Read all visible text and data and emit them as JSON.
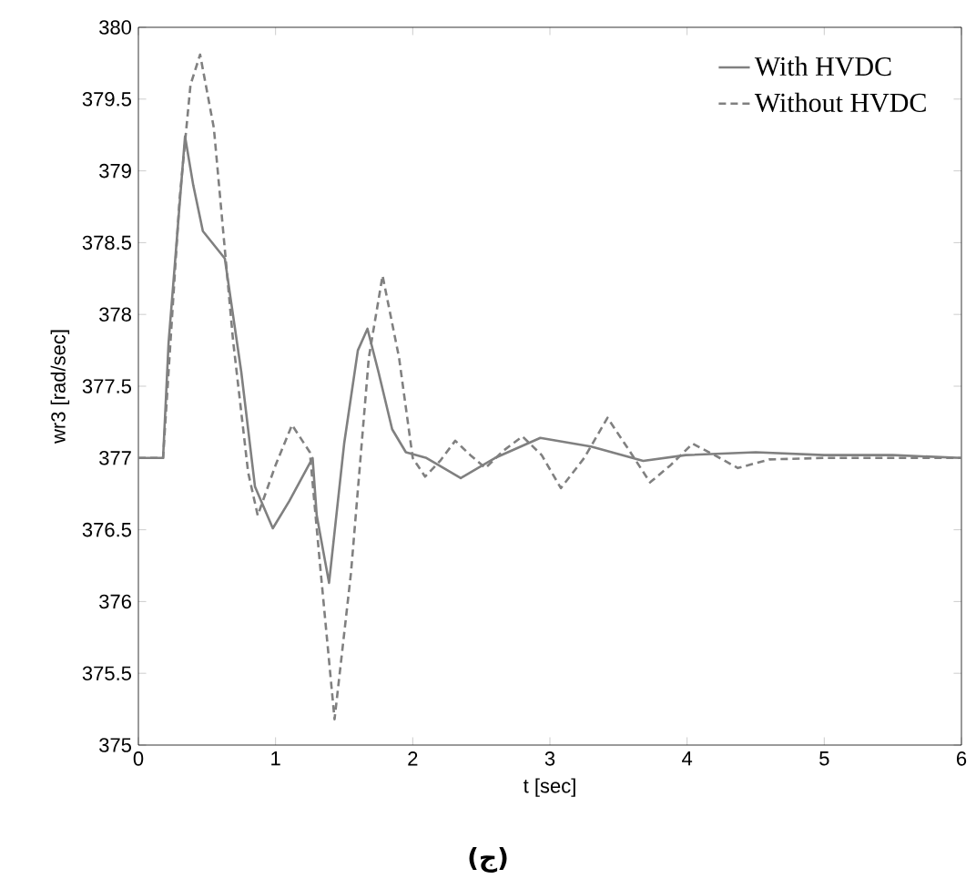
{
  "chart_data": {
    "type": "line",
    "xlabel": "t [sec]",
    "ylabel": "wr3 [rad/sec]",
    "annotations": [
      "(ج)"
    ],
    "xlim": [
      0,
      6
    ],
    "ylim": [
      375,
      380
    ],
    "xticks": [
      0,
      1,
      2,
      3,
      4,
      5,
      6
    ],
    "yticks": [
      375,
      375.5,
      376,
      376.5,
      377,
      377.5,
      378,
      378.5,
      379,
      379.5,
      380
    ],
    "legend": "top right",
    "grid": false,
    "marker": "none",
    "series": [
      {
        "name": "With HVDC",
        "color": "#808080",
        "line_style": "solid",
        "x": [
          0,
          0.18,
          0.22,
          0.34,
          0.4,
          0.47,
          0.63,
          0.75,
          0.85,
          0.98,
          1.1,
          1.27,
          1.3,
          1.39,
          1.5,
          1.6,
          1.67,
          1.75,
          1.85,
          1.95,
          2.1,
          2.35,
          2.6,
          2.93,
          3.3,
          3.68,
          3.99,
          4.5,
          5,
          5.5,
          6
        ],
        "values": [
          377,
          377,
          377.8,
          379.24,
          378.9,
          378.58,
          378.39,
          377.6,
          376.8,
          376.51,
          376.7,
          377.0,
          376.6,
          376.13,
          377.1,
          377.75,
          377.9,
          377.6,
          377.2,
          377.04,
          377.0,
          376.86,
          377.0,
          377.14,
          377.08,
          376.98,
          377.02,
          377.04,
          377.02,
          377.02,
          377.0
        ]
      },
      {
        "name": "Without HVDC",
        "color": "#808080",
        "line_style": "dashed",
        "x": [
          0,
          0.18,
          0.3,
          0.38,
          0.45,
          0.55,
          0.69,
          0.8,
          0.87,
          1.0,
          1.12,
          1.25,
          1.32,
          1.43,
          1.55,
          1.68,
          1.78,
          1.9,
          2.0,
          2.09,
          2.2,
          2.31,
          2.42,
          2.53,
          2.66,
          2.8,
          2.94,
          3.08,
          3.25,
          3.42,
          3.58,
          3.73,
          3.88,
          4.04,
          4.2,
          4.37,
          4.6,
          5,
          5.5,
          6
        ],
        "values": [
          377,
          377,
          378.8,
          379.6,
          379.81,
          379.3,
          377.82,
          376.9,
          376.6,
          376.95,
          377.23,
          377.04,
          376.3,
          375.18,
          376.2,
          377.7,
          378.27,
          377.7,
          377.0,
          376.87,
          376.98,
          377.12,
          377.02,
          376.93,
          377.05,
          377.15,
          377.02,
          376.79,
          377.0,
          377.28,
          377.05,
          376.83,
          376.95,
          377.1,
          377.02,
          376.93,
          376.99,
          377.0,
          377.0,
          377.0
        ]
      }
    ]
  }
}
